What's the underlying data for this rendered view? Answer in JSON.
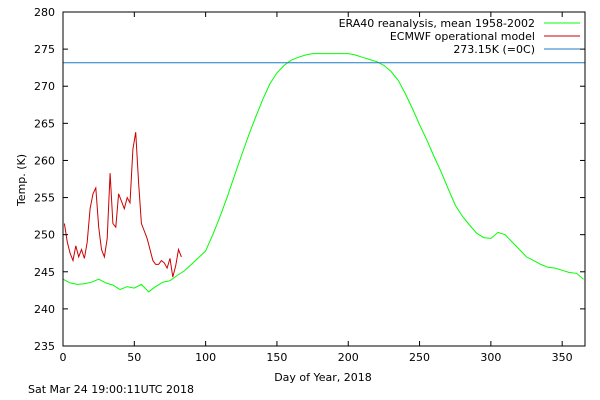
{
  "chart_data": {
    "type": "line",
    "xlabel": "Day of Year, 2018",
    "ylabel": "Temp. (K)",
    "xlim": [
      0,
      366
    ],
    "ylim": [
      235,
      280
    ],
    "xticks": [
      0,
      50,
      100,
      150,
      200,
      250,
      300,
      350
    ],
    "yticks": [
      235,
      240,
      245,
      250,
      255,
      260,
      265,
      270,
      275,
      280
    ],
    "legend_position": "top-right",
    "grid": false,
    "series": [
      {
        "name": "ERA40 reanalysis, mean 1958-2002",
        "color": "#00ff00",
        "x": [
          0,
          5,
          10,
          15,
          20,
          25,
          30,
          35,
          40,
          45,
          50,
          55,
          60,
          65,
          70,
          75,
          80,
          85,
          90,
          95,
          100,
          105,
          110,
          115,
          120,
          125,
          130,
          135,
          140,
          145,
          150,
          155,
          160,
          165,
          170,
          175,
          180,
          185,
          190,
          195,
          200,
          205,
          210,
          215,
          220,
          225,
          230,
          235,
          240,
          245,
          250,
          255,
          260,
          265,
          270,
          275,
          280,
          285,
          290,
          295,
          300,
          305,
          310,
          315,
          320,
          325,
          330,
          335,
          340,
          345,
          350,
          355,
          360,
          365
        ],
        "y": [
          244.0,
          243.5,
          243.3,
          243.4,
          243.6,
          244.0,
          243.5,
          243.2,
          242.6,
          243.0,
          242.8,
          243.3,
          242.3,
          243.0,
          243.6,
          243.8,
          244.5,
          245.1,
          246.0,
          246.9,
          247.8,
          250.0,
          252.4,
          255.0,
          257.8,
          260.6,
          263.3,
          265.8,
          268.2,
          270.3,
          271.8,
          272.8,
          273.5,
          273.9,
          274.2,
          274.4,
          274.4,
          274.4,
          274.4,
          274.4,
          274.4,
          274.2,
          273.9,
          273.6,
          273.3,
          272.8,
          272.0,
          270.8,
          269.0,
          267.0,
          264.8,
          262.8,
          260.6,
          258.5,
          256.2,
          254.0,
          252.5,
          251.3,
          250.2,
          249.6,
          249.5,
          250.3,
          250.0,
          249.0,
          248.0,
          247.0,
          246.5,
          246.0,
          245.6,
          245.5,
          245.2,
          244.9,
          244.8,
          244.0
        ]
      },
      {
        "name": "ECMWF operational model",
        "color": "#cc0000",
        "x": [
          1,
          3,
          5,
          7,
          9,
          11,
          13,
          15,
          17,
          19,
          21,
          23,
          25,
          27,
          29,
          31,
          33,
          35,
          37,
          39,
          41,
          43,
          45,
          47,
          49,
          51,
          53,
          55,
          57,
          59,
          61,
          63,
          65,
          67,
          69,
          71,
          73,
          75,
          77,
          79,
          81,
          83
        ],
        "y": [
          251.5,
          249.0,
          247.5,
          246.5,
          248.5,
          247.0,
          248.0,
          246.8,
          249.0,
          253.5,
          255.5,
          256.3,
          251.0,
          248.0,
          247.0,
          249.5,
          258.3,
          251.5,
          251.0,
          255.5,
          254.5,
          253.5,
          255.0,
          254.3,
          261.5,
          263.8,
          257.0,
          251.5,
          250.5,
          249.5,
          248.0,
          246.5,
          246.0,
          246.0,
          246.5,
          246.2,
          245.5,
          246.8,
          244.3,
          245.8,
          248.0,
          247.0
        ]
      },
      {
        "name": "273.15K (=0C)",
        "color": "#1a7cc8",
        "x": [
          0,
          366
        ],
        "y": [
          273.15,
          273.15
        ]
      }
    ]
  },
  "footer": {
    "timestamp": "Sat Mar 24 19:00:11UTC 2018"
  }
}
